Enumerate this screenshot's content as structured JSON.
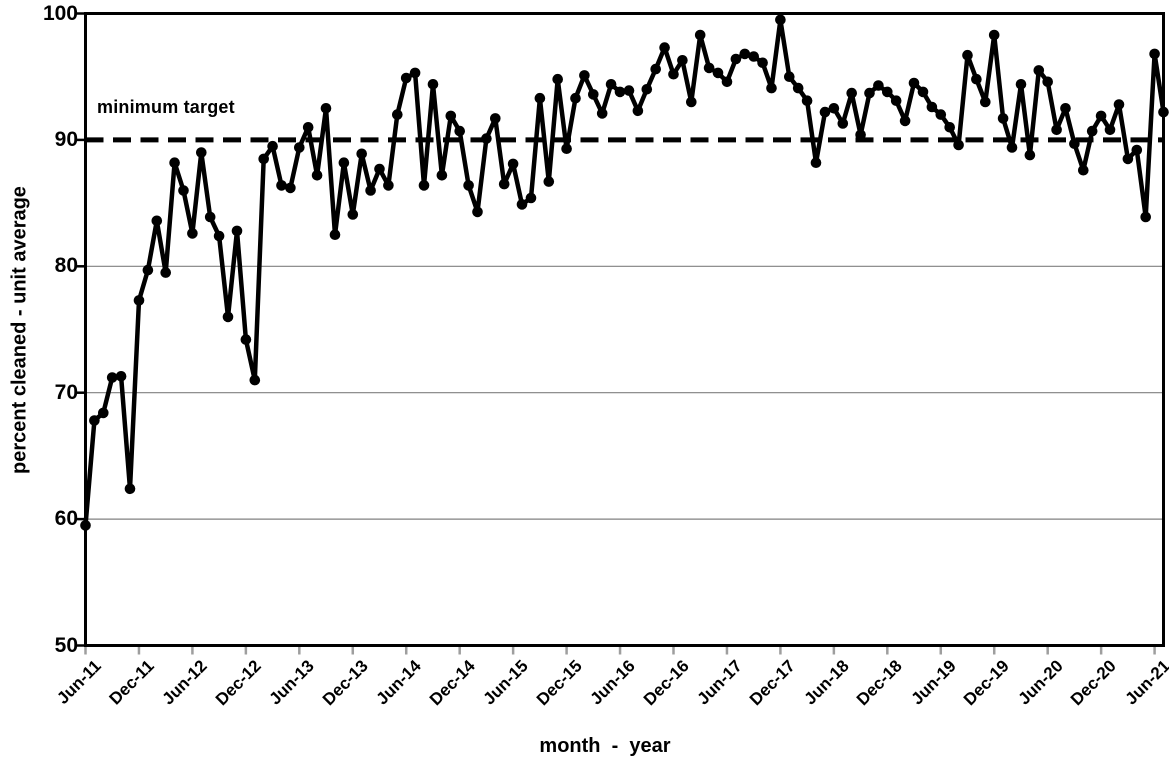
{
  "chart_data": {
    "type": "line",
    "title": "",
    "xlabel": "month  -  year",
    "ylabel": "percent cleaned - unit average",
    "x_start": "Jun-11",
    "x_interval": "monthly",
    "x_tick_labels": [
      "Jun-11",
      "Dec-11",
      "Jun-12",
      "Dec-12",
      "Jun-13",
      "Dec-13",
      "Jun-14",
      "Dec-14",
      "Jun-15",
      "Dec-15",
      "Jun-16",
      "Dec-16",
      "Jun-17",
      "Dec-17",
      "Jun-18",
      "Dec-18",
      "Jun-19",
      "Dec-19",
      "Jun-20",
      "Dec-20",
      "Jun-21"
    ],
    "x_ticks_every_n_points": 6,
    "y_ticks": [
      50,
      60,
      70,
      80,
      90,
      100
    ],
    "ylim": [
      50,
      100
    ],
    "grid": "horizontal",
    "legend_position": "none",
    "target_line": {
      "value": 90,
      "label": "minimum target",
      "style": "dashed"
    },
    "series": [
      {
        "name": "percent cleaned - unit average",
        "color": "#000000",
        "marker": "circle",
        "values": [
          59.5,
          67.8,
          68.4,
          71.2,
          71.3,
          62.4,
          77.3,
          79.7,
          83.6,
          79.5,
          88.2,
          86.0,
          82.6,
          89.0,
          83.9,
          82.4,
          76.0,
          82.8,
          74.2,
          71.0,
          88.5,
          89.5,
          86.4,
          86.2,
          89.4,
          91.0,
          87.2,
          92.5,
          82.5,
          88.2,
          84.1,
          88.9,
          86.0,
          87.7,
          86.4,
          92.0,
          94.9,
          95.3,
          86.4,
          94.4,
          87.2,
          91.9,
          90.7,
          86.4,
          84.3,
          90.1,
          91.7,
          86.5,
          88.1,
          84.9,
          85.4,
          93.3,
          86.7,
          94.8,
          89.3,
          93.3,
          95.1,
          93.6,
          92.1,
          94.4,
          93.8,
          93.9,
          92.3,
          94.0,
          95.6,
          97.3,
          95.2,
          96.3,
          93.0,
          98.3,
          95.7,
          95.3,
          94.6,
          96.4,
          96.8,
          96.6,
          96.1,
          94.1,
          99.5,
          95.0,
          94.1,
          93.1,
          88.2,
          92.2,
          92.5,
          91.3,
          93.7,
          90.4,
          93.7,
          94.3,
          93.8,
          93.1,
          91.5,
          94.5,
          93.8,
          92.6,
          92.0,
          91.0,
          89.6,
          96.7,
          94.8,
          93.0,
          98.3,
          91.7,
          89.4,
          94.4,
          88.8,
          95.5,
          94.6,
          90.8,
          92.5,
          89.7,
          87.6,
          90.7,
          91.9,
          90.8,
          92.8,
          88.5,
          89.2,
          83.9,
          96.8,
          92.2
        ]
      }
    ],
    "colors": {
      "series": "#000000",
      "gridline": "#808080",
      "x_tick_mark": "#9e9e9e",
      "axis": "#000000",
      "background": "#ffffff"
    }
  }
}
